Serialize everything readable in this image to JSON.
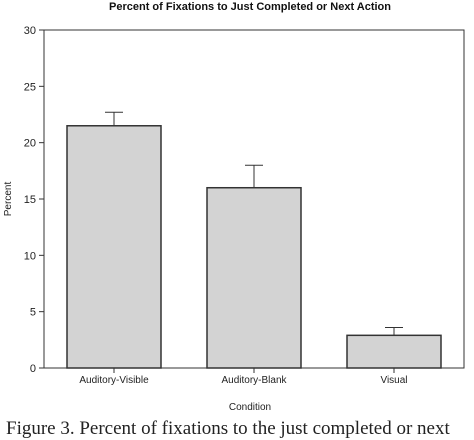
{
  "chart_data": {
    "type": "bar",
    "title": "Percent of Fixations to Just Completed or Next Action",
    "xlabel": "Condition",
    "ylabel": "Percent",
    "ylim": [
      0,
      30
    ],
    "yticks": [
      0,
      5,
      10,
      15,
      20,
      25,
      30
    ],
    "categories": [
      "Auditory-Visible",
      "Auditory-Blank",
      "Visual"
    ],
    "values": [
      21.5,
      16.0,
      2.9
    ],
    "error_upper": [
      22.7,
      18.0,
      3.6
    ],
    "grid": false,
    "colors": {
      "bar_fill": "#d3d3d3",
      "bar_stroke": "#333333",
      "axis": "#333333"
    }
  },
  "caption": "Figure 3. Percent of fixations to the just completed or next"
}
